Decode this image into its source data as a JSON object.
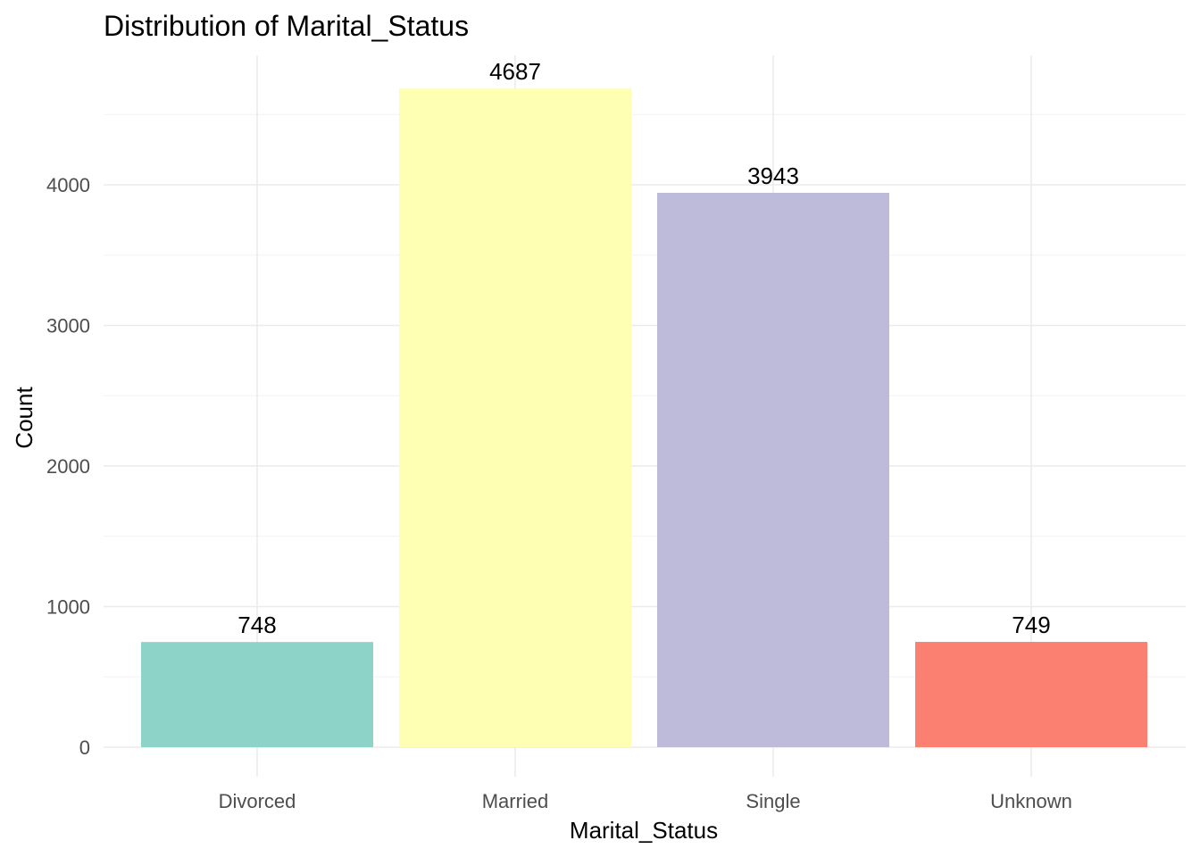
{
  "chart_data": {
    "type": "bar",
    "title": "Distribution of Marital_Status",
    "xlabel": "Marital_Status",
    "ylabel": "Count",
    "categories": [
      "Divorced",
      "Married",
      "Single",
      "Unknown"
    ],
    "values": [
      748,
      4687,
      3943,
      749
    ],
    "data_labels": [
      "748",
      "4687",
      "3943",
      "749"
    ],
    "colors": [
      "#8DD3C7",
      "#FFFFB3",
      "#BEBADA",
      "#FB8072"
    ],
    "yticks": [
      0,
      1000,
      2000,
      3000,
      4000
    ],
    "ytick_labels": [
      "0",
      "1000",
      "2000",
      "3000",
      "4000"
    ],
    "ylim": [
      0,
      4900
    ],
    "grid": true,
    "legend": "none"
  }
}
